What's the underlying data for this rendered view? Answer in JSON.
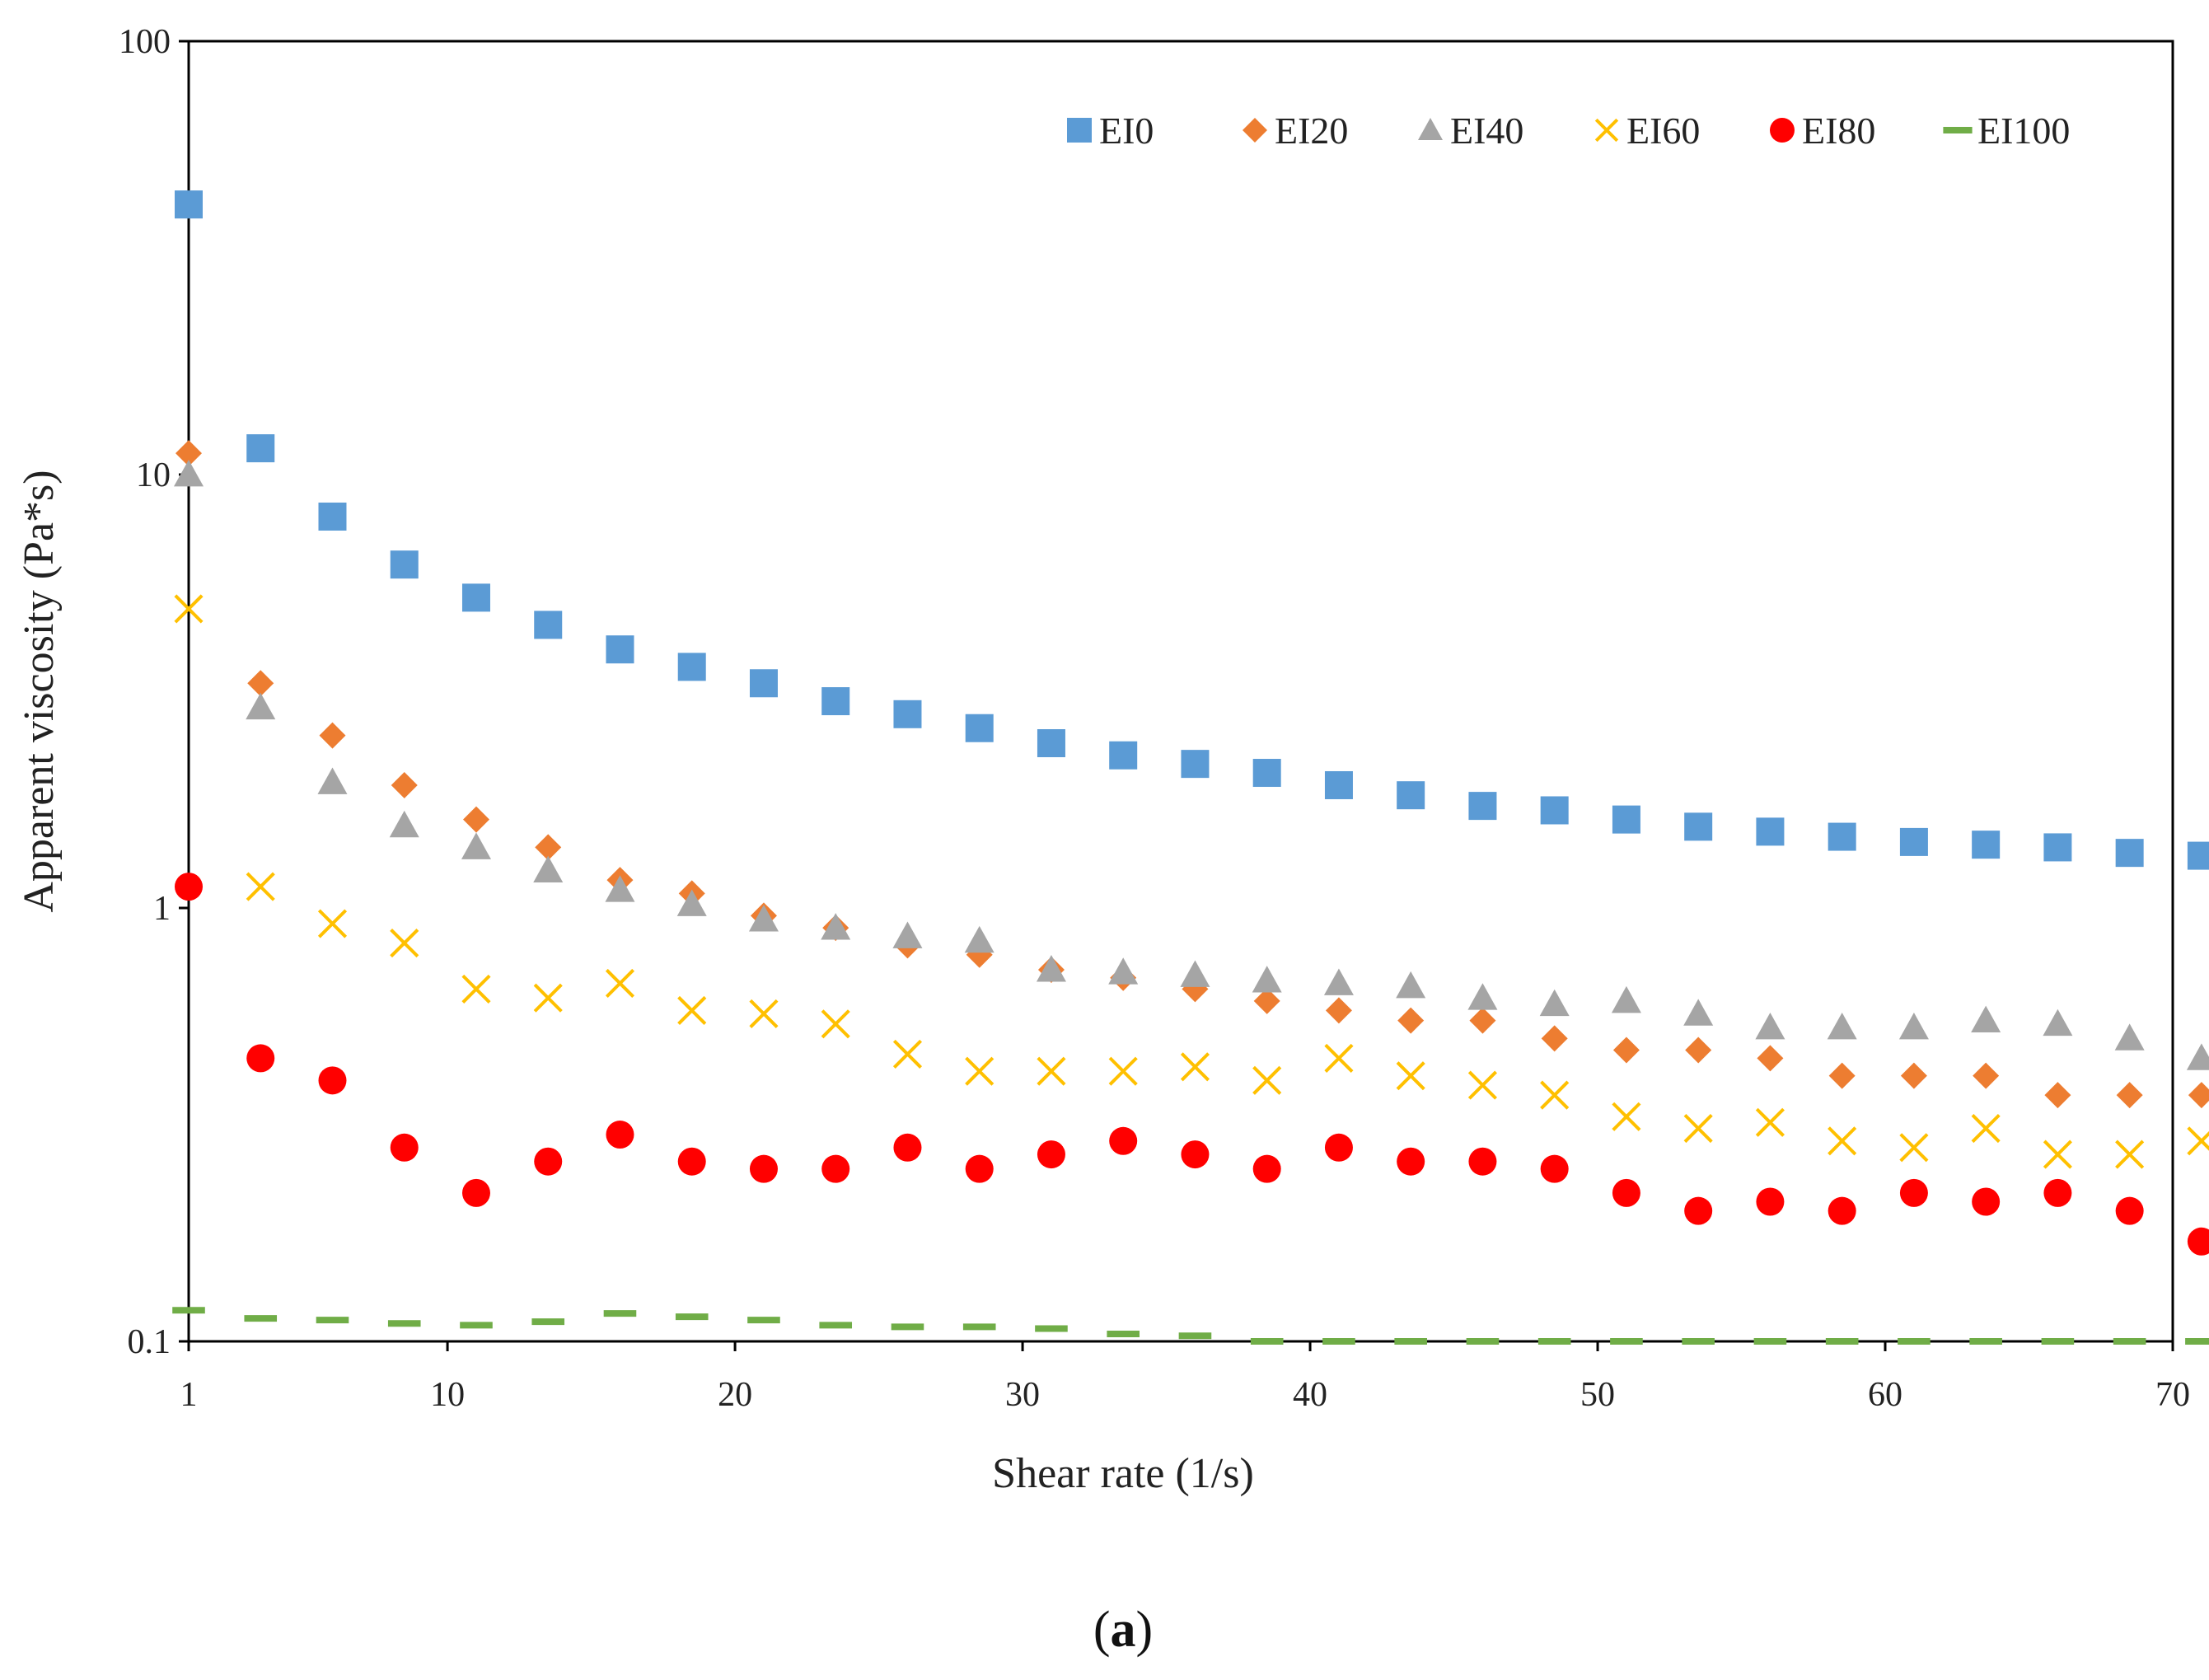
{
  "chart_data": {
    "type": "scatter",
    "title": "",
    "xlabel": "Shear rate (1/s)",
    "ylabel": "Apparent viscosity (Pa*s)",
    "xlim": [
      1,
      70
    ],
    "ylim": [
      0.1,
      100
    ],
    "yscale": "log",
    "x_ticks": [
      "1",
      "10",
      "20",
      "30",
      "40",
      "50",
      "60",
      "70"
    ],
    "y_ticks": [
      "0.1",
      "1",
      "10",
      "100"
    ],
    "x_tick_values": [
      1,
      10,
      20,
      30,
      40,
      50,
      60,
      70
    ],
    "y_tick_values": [
      0.1,
      1,
      10,
      100
    ],
    "legend_position": "top-right",
    "caption": {
      "open": "(",
      "letter": "a",
      "close": ")"
    },
    "x": [
      1,
      3.5,
      6,
      8.5,
      11,
      13.5,
      16,
      18.5,
      21,
      23.5,
      26,
      28.5,
      31,
      33.5,
      36,
      38.5,
      41,
      43.5,
      46,
      48.5,
      51,
      53.5,
      56,
      58.5,
      61,
      63.5,
      66,
      68.5,
      71
    ],
    "series": [
      {
        "name": "EI0",
        "marker": "square",
        "color": "#5B9BD5",
        "values": [
          42,
          11.5,
          8.0,
          6.2,
          5.2,
          4.5,
          3.95,
          3.6,
          3.3,
          3.0,
          2.8,
          2.6,
          2.4,
          2.25,
          2.15,
          2.05,
          1.92,
          1.82,
          1.72,
          1.68,
          1.6,
          1.54,
          1.5,
          1.46,
          1.42,
          1.4,
          1.38,
          1.34,
          1.32
        ]
      },
      {
        "name": "EI20",
        "marker": "diamond",
        "color": "#ED7D31",
        "values": [
          11.2,
          3.3,
          2.5,
          1.92,
          1.6,
          1.38,
          1.16,
          1.08,
          0.96,
          0.9,
          0.82,
          0.78,
          0.72,
          0.69,
          0.65,
          0.61,
          0.58,
          0.55,
          0.55,
          0.5,
          0.47,
          0.47,
          0.45,
          0.41,
          0.41,
          0.41,
          0.37,
          0.37,
          0.37
        ]
      },
      {
        "name": "EI40",
        "marker": "triangle",
        "color": "#A5A5A5",
        "values": [
          10,
          2.9,
          1.95,
          1.55,
          1.38,
          1.22,
          1.1,
          1.02,
          0.94,
          0.9,
          0.86,
          0.84,
          0.72,
          0.71,
          0.7,
          0.68,
          0.67,
          0.66,
          0.62,
          0.6,
          0.61,
          0.57,
          0.53,
          0.53,
          0.53,
          0.55,
          0.54,
          0.5,
          0.45
        ]
      },
      {
        "name": "EI60",
        "marker": "x",
        "color": "#FFC000",
        "values": [
          4.9,
          1.12,
          0.92,
          0.83,
          0.65,
          0.62,
          0.67,
          0.58,
          0.57,
          0.54,
          0.46,
          0.42,
          0.42,
          0.42,
          0.43,
          0.4,
          0.45,
          0.41,
          0.39,
          0.37,
          0.33,
          0.31,
          0.32,
          0.29,
          0.28,
          0.31,
          0.27,
          0.27,
          0.29
        ]
      },
      {
        "name": "EI80",
        "marker": "circle",
        "color": "#FF0000",
        "values": [
          1.12,
          0.45,
          0.4,
          0.28,
          0.22,
          0.26,
          0.3,
          0.26,
          0.25,
          0.25,
          0.28,
          0.25,
          0.27,
          0.29,
          0.27,
          0.25,
          0.28,
          0.26,
          0.26,
          0.25,
          0.22,
          0.2,
          0.21,
          0.2,
          0.22,
          0.21,
          0.22,
          0.2,
          0.17
        ]
      },
      {
        "name": "EI100",
        "marker": "dash",
        "color": "#70AD47",
        "values": [
          0.118,
          0.113,
          0.112,
          0.11,
          0.109,
          0.111,
          0.116,
          0.114,
          0.112,
          0.109,
          0.108,
          0.108,
          0.107,
          0.104,
          0.103,
          0.1,
          0.1,
          0.1,
          0.1,
          0.1,
          0.1,
          0.1,
          0.1,
          0.1,
          0.1,
          0.1,
          0.1,
          0.1,
          0.1
        ]
      }
    ]
  }
}
